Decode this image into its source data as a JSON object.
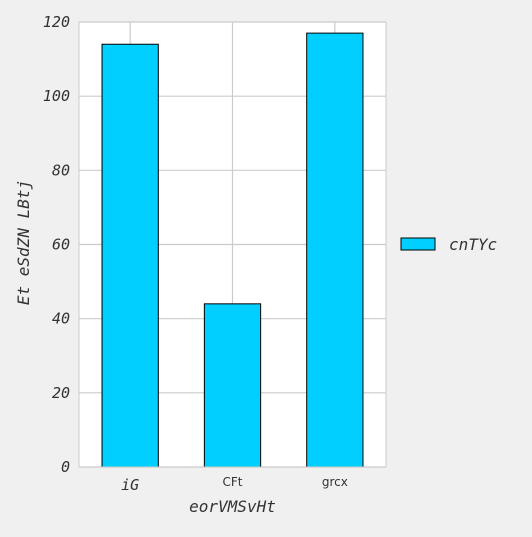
{
  "chart_data": {
    "type": "bar",
    "categories": [
      "iG",
      "CFt",
      "grcx"
    ],
    "series": [
      {
        "name": "cnTYc",
        "values": [
          114,
          44,
          117
        ]
      }
    ],
    "xlabel": "eorVMSvHt",
    "ylabel": "Et eSdZN LBtj",
    "ylim": [
      0,
      120
    ],
    "yticks": [
      0,
      20,
      40,
      60,
      80,
      100,
      120
    ],
    "grid": true,
    "legend_position": "right",
    "colors": {
      "bar": "#00cfff",
      "bar_edge": "#000000",
      "plot_bg": "#ffffff",
      "page_bg": "#f0f0f0",
      "grid": "#cbcbcb"
    }
  }
}
